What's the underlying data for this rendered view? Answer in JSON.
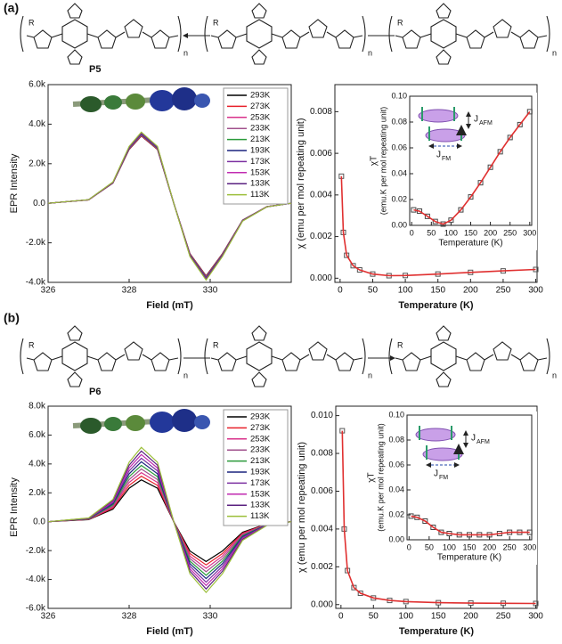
{
  "panels": [
    {
      "label": "(a)",
      "polymer": "P5"
    },
    {
      "label": "(b)",
      "polymer": "P6"
    }
  ],
  "structure": {
    "repeat": "n",
    "substituent": "R"
  },
  "cartoon": {
    "symbol": "J",
    "afm": "AFM",
    "fm": "FM"
  },
  "chart_data": [
    {
      "type": "line",
      "xlabel": "Field (mT)",
      "ylabel": "EPR Intensity",
      "xlim": [
        326,
        332
      ],
      "xticks": [
        326,
        328,
        330
      ],
      "ylim": [
        -4000,
        6000
      ],
      "yticks": [
        {
          "value": -4000,
          "label": "-4.0k"
        },
        {
          "value": -2000,
          "label": "-2.0k"
        },
        {
          "value": 0,
          "label": "0.0"
        },
        {
          "value": 2000,
          "label": "2.0k"
        },
        {
          "value": 4000,
          "label": "4.0k"
        },
        {
          "value": 6000,
          "label": "6.0k"
        }
      ],
      "x": [
        326,
        327,
        327.6,
        328,
        328.3,
        328.7,
        329.1,
        329.5,
        329.9,
        330.3,
        330.8,
        331.4,
        332
      ],
      "series": [
        {
          "name": "293K",
          "color": "#000000",
          "values": [
            0,
            170,
            1020,
            2720,
            3400,
            2720,
            0,
            -2550,
            -3672,
            -2550,
            -850,
            -170,
            0
          ]
        },
        {
          "name": "273K",
          "color": "#e8202a",
          "values": [
            0,
            171,
            1026,
            2736,
            3420,
            2736,
            0,
            -2565,
            -3694,
            -2565,
            -855,
            -171,
            0
          ]
        },
        {
          "name": "253K",
          "color": "#d8308a",
          "values": [
            0,
            172,
            1032,
            2752,
            3440,
            2752,
            0,
            -2580,
            -3715,
            -2580,
            -860,
            -172,
            0
          ]
        },
        {
          "name": "233K",
          "color": "#a0508c",
          "values": [
            0,
            173,
            1038,
            2768,
            3460,
            2768,
            0,
            -2595,
            -3737,
            -2595,
            -865,
            -173,
            0
          ]
        },
        {
          "name": "213K",
          "color": "#2a9a3a",
          "values": [
            0,
            174,
            1044,
            2784,
            3480,
            2784,
            0,
            -2610,
            -3758,
            -2610,
            -870,
            -174,
            0
          ]
        },
        {
          "name": "193K",
          "color": "#1a237e",
          "values": [
            0,
            175,
            1050,
            2800,
            3500,
            2800,
            0,
            -2625,
            -3780,
            -2625,
            -875,
            -175,
            0
          ]
        },
        {
          "name": "173K",
          "color": "#7b2fa0",
          "values": [
            0,
            176,
            1056,
            2816,
            3520,
            2816,
            0,
            -2640,
            -3802,
            -2640,
            -880,
            -176,
            0
          ]
        },
        {
          "name": "153K",
          "color": "#c02ab0",
          "values": [
            0,
            177,
            1062,
            2832,
            3540,
            2832,
            0,
            -2655,
            -3823,
            -2655,
            -885,
            -177,
            0
          ]
        },
        {
          "name": "133K",
          "color": "#5a2080",
          "values": [
            0,
            178,
            1068,
            2848,
            3560,
            2848,
            0,
            -2670,
            -3845,
            -2670,
            -890,
            -178,
            0
          ]
        },
        {
          "name": "113K",
          "color": "#9cbf3a",
          "values": [
            0,
            180,
            1080,
            2880,
            3600,
            2880,
            0,
            -2700,
            -3888,
            -2700,
            -900,
            -180,
            0
          ]
        }
      ]
    },
    {
      "type": "scatter",
      "xlabel": "Temperature (K)",
      "ylabel": "χ (emu per mol repeating unit)",
      "xlim": [
        -8,
        302
      ],
      "xticks": [
        0,
        50,
        100,
        150,
        200,
        250,
        300
      ],
      "ylim": [
        -0.0002,
        0.0093
      ],
      "yticks": [
        {
          "value": 0,
          "label": "0.000"
        },
        {
          "value": 0.002,
          "label": "0.002"
        },
        {
          "value": 0.004,
          "label": "0.004"
        },
        {
          "value": 0.006,
          "label": "0.006"
        },
        {
          "value": 0.008,
          "label": "0.008"
        }
      ],
      "x": [
        2,
        5,
        10,
        20,
        30,
        50,
        75,
        100,
        150,
        200,
        250,
        300
      ],
      "values": [
        0.0049,
        0.0022,
        0.0011,
        0.0006,
        0.0004,
        0.0002,
        0.00012,
        0.00013,
        0.0002,
        0.00028,
        0.00035,
        0.00042
      ],
      "color": "#e03030",
      "marker_color": "#555555"
    },
    {
      "type": "scatter",
      "inset": true,
      "xlabel": "Temperature (K)",
      "ylabel": "χT",
      "ylabel_unit": "(emu.K per mol repeating unit)",
      "xlim": [
        -5,
        305
      ],
      "xticks": [
        0,
        50,
        100,
        150,
        200,
        250,
        300
      ],
      "ylim": [
        0,
        0.1
      ],
      "yticks": [
        {
          "value": 0,
          "label": "0.00"
        },
        {
          "value": 0.02,
          "label": "0.02"
        },
        {
          "value": 0.04,
          "label": "0.04"
        },
        {
          "value": 0.06,
          "label": "0.06"
        },
        {
          "value": 0.08,
          "label": "0.08"
        },
        {
          "value": 0.1,
          "label": "0.10"
        }
      ],
      "x": [
        5,
        20,
        40,
        60,
        80,
        100,
        125,
        150,
        175,
        200,
        225,
        250,
        275,
        300
      ],
      "values": [
        0.012,
        0.011,
        0.007,
        0.003,
        0.001,
        0.004,
        0.012,
        0.022,
        0.033,
        0.045,
        0.057,
        0.068,
        0.078,
        0.088
      ],
      "color": "#e03030",
      "marker_color": "#444444"
    },
    {
      "type": "line",
      "xlabel": "Field (mT)",
      "ylabel": "EPR Intensity",
      "xlim": [
        326,
        332
      ],
      "xticks": [
        326,
        328,
        330
      ],
      "ylim": [
        -6000,
        8000
      ],
      "yticks": [
        {
          "value": -6000,
          "label": "-6.0k"
        },
        {
          "value": -4000,
          "label": "-4.0k"
        },
        {
          "value": -2000,
          "label": "-2.0k"
        },
        {
          "value": 0,
          "label": "0.0"
        },
        {
          "value": 2000,
          "label": "2.0k"
        },
        {
          "value": 4000,
          "label": "4.0k"
        },
        {
          "value": 6000,
          "label": "6.0k"
        },
        {
          "value": 8000,
          "label": "8.0k"
        }
      ],
      "x": [
        326,
        327,
        327.6,
        328,
        328.3,
        328.7,
        329.1,
        329.5,
        329.9,
        330.3,
        330.8,
        331.4,
        332
      ],
      "series": [
        {
          "name": "293K",
          "color": "#000000",
          "values": [
            0,
            145,
            870,
            2320,
            2900,
            2320,
            0,
            -2030,
            -2755,
            -2030,
            -725,
            -145,
            0
          ]
        },
        {
          "name": "273K",
          "color": "#e8202a",
          "values": [
            0,
            158,
            945,
            2520,
            3150,
            2520,
            0,
            -2205,
            -2993,
            -2205,
            -788,
            -158,
            0
          ]
        },
        {
          "name": "253K",
          "color": "#d8308a",
          "values": [
            0,
            170,
            1020,
            2720,
            3400,
            2720,
            0,
            -2380,
            -3230,
            -2380,
            -850,
            -170,
            0
          ]
        },
        {
          "name": "233K",
          "color": "#a0508c",
          "values": [
            0,
            183,
            1095,
            2920,
            3650,
            2920,
            0,
            -2555,
            -3468,
            -2555,
            -913,
            -183,
            0
          ]
        },
        {
          "name": "213K",
          "color": "#2a9a3a",
          "values": [
            0,
            195,
            1170,
            3120,
            3900,
            3120,
            0,
            -2730,
            -3705,
            -2730,
            -975,
            -195,
            0
          ]
        },
        {
          "name": "193K",
          "color": "#1a237e",
          "values": [
            0,
            208,
            1245,
            3320,
            4150,
            3320,
            0,
            -2905,
            -3943,
            -2905,
            -1038,
            -208,
            0
          ]
        },
        {
          "name": "173K",
          "color": "#7b2fa0",
          "values": [
            0,
            220,
            1320,
            3520,
            4400,
            3520,
            0,
            -3080,
            -4180,
            -3080,
            -1100,
            -220,
            0
          ]
        },
        {
          "name": "153K",
          "color": "#c02ab0",
          "values": [
            0,
            233,
            1395,
            3720,
            4650,
            3720,
            0,
            -3255,
            -4418,
            -3255,
            -1163,
            -233,
            0
          ]
        },
        {
          "name": "133K",
          "color": "#5a2080",
          "values": [
            0,
            245,
            1470,
            3920,
            4900,
            3920,
            0,
            -3430,
            -4655,
            -3430,
            -1225,
            -245,
            0
          ]
        },
        {
          "name": "113K",
          "color": "#9cbf3a",
          "values": [
            0,
            258,
            1545,
            4120,
            5150,
            4120,
            0,
            -3605,
            -4893,
            -3605,
            -1288,
            -258,
            0
          ]
        }
      ]
    },
    {
      "type": "scatter",
      "xlabel": "Temperature (K)",
      "ylabel": "χ (emu per mol repeating unit)",
      "xlim": [
        -8,
        302
      ],
      "xticks": [
        0,
        50,
        100,
        150,
        200,
        250,
        300
      ],
      "ylim": [
        -0.0002,
        0.0105
      ],
      "yticks": [
        {
          "value": 0,
          "label": "0.000"
        },
        {
          "value": 0.002,
          "label": "0.002"
        },
        {
          "value": 0.004,
          "label": "0.004"
        },
        {
          "value": 0.006,
          "label": "0.006"
        },
        {
          "value": 0.008,
          "label": "0.008"
        },
        {
          "value": 0.01,
          "label": "0.010"
        }
      ],
      "x": [
        2,
        5,
        10,
        20,
        30,
        50,
        75,
        100,
        150,
        200,
        250,
        300
      ],
      "values": [
        0.0092,
        0.004,
        0.0018,
        0.0009,
        0.0006,
        0.00035,
        0.00022,
        0.00016,
        0.0001,
        8e-05,
        7e-05,
        6e-05
      ],
      "color": "#e03030",
      "marker_color": "#555555"
    },
    {
      "type": "scatter",
      "inset": true,
      "xlabel": "Temperature (K)",
      "ylabel": "χT",
      "ylabel_unit": "(emu.K per mol repeating unit)",
      "xlim": [
        -5,
        305
      ],
      "xticks": [
        0,
        50,
        100,
        150,
        200,
        250,
        300
      ],
      "ylim": [
        0,
        0.1
      ],
      "yticks": [
        {
          "value": 0,
          "label": "0.00"
        },
        {
          "value": 0.02,
          "label": "0.02"
        },
        {
          "value": 0.04,
          "label": "0.04"
        },
        {
          "value": 0.06,
          "label": "0.06"
        },
        {
          "value": 0.08,
          "label": "0.08"
        },
        {
          "value": 0.1,
          "label": "0.10"
        }
      ],
      "x": [
        5,
        20,
        40,
        60,
        80,
        100,
        125,
        150,
        175,
        200,
        225,
        250,
        275,
        300
      ],
      "values": [
        0.019,
        0.018,
        0.015,
        0.01,
        0.006,
        0.005,
        0.004,
        0.004,
        0.004,
        0.004,
        0.005,
        0.006,
        0.006,
        0.006
      ],
      "color": "#e03030",
      "marker_color": "#444444"
    }
  ]
}
